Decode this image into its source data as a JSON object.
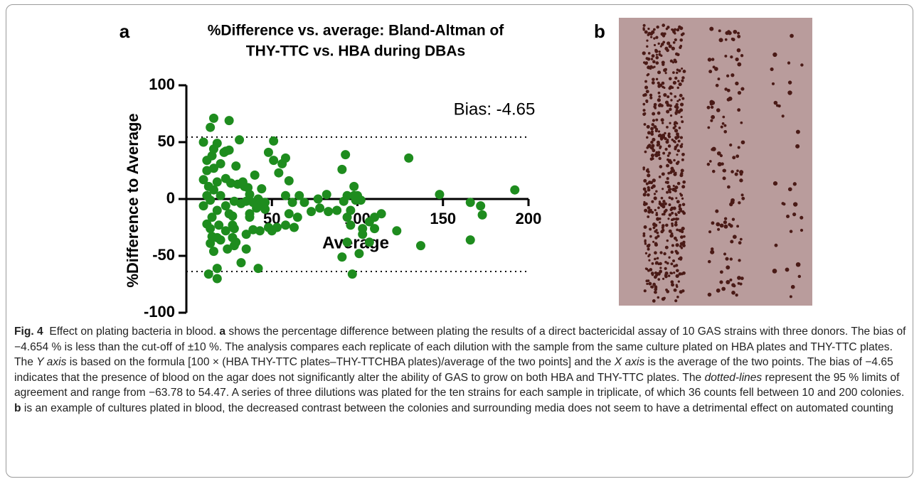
{
  "panel_labels": [
    "a",
    "b"
  ],
  "chart_data": {
    "type": "scatter",
    "title": [
      "%Difference vs. average: Bland-Altman of",
      "THY-TTC vs. HBA during DBAs"
    ],
    "xlabel": "Average",
    "ylabel": "%Difference to Average",
    "annotation": "Bias: -4.65",
    "color": "#1e8c1e",
    "xlim": [
      0,
      200
    ],
    "xticks": [
      50,
      100,
      150,
      200
    ],
    "ylim": [
      -100,
      100
    ],
    "yticks": [
      100,
      50,
      0,
      -50,
      -100
    ],
    "reference_lines": [
      54.47,
      -63.78
    ],
    "x": [
      16,
      14,
      25,
      10,
      12,
      15,
      16,
      18,
      22,
      23,
      25,
      31,
      29,
      20,
      16,
      12,
      10,
      13,
      16,
      18,
      23,
      26,
      30,
      33,
      34,
      36,
      37,
      12,
      14,
      20,
      23,
      28,
      32,
      35,
      39,
      42,
      43,
      46,
      10,
      15,
      18,
      25,
      27,
      37,
      41,
      46,
      12,
      14,
      19,
      23,
      27,
      28,
      27,
      29,
      35,
      37,
      39,
      14,
      15,
      18,
      20,
      24,
      28,
      35,
      32,
      18,
      13,
      18,
      16,
      40,
      44,
      48,
      51,
      51,
      54,
      56,
      58,
      58,
      60,
      62,
      60,
      63,
      65,
      58,
      53,
      50,
      48,
      43,
      42,
      66,
      69,
      73,
      77,
      78,
      83,
      82,
      88,
      92,
      94,
      96,
      102,
      96,
      103,
      91,
      93,
      100,
      98,
      107,
      110,
      110,
      114,
      123,
      130,
      99,
      103,
      94,
      91,
      97,
      101,
      107,
      137,
      148,
      166,
      166,
      172,
      173,
      192,
      94,
      98
    ],
    "values": [
      71,
      63,
      69,
      50,
      34,
      38,
      44,
      49,
      41,
      42,
      43,
      52,
      29,
      31,
      27,
      25,
      17,
      11,
      8,
      15,
      18,
      14,
      13,
      15,
      11,
      10,
      4,
      3,
      -1,
      3,
      -6,
      -2,
      -4,
      -2,
      -3,
      0,
      -4,
      -3,
      -6,
      -16,
      -10,
      -13,
      -15,
      -13,
      -8,
      -9,
      -22,
      -26,
      -23,
      -28,
      -23,
      -26,
      -34,
      -38,
      -31,
      -16,
      -27,
      -39,
      -33,
      -34,
      -36,
      -44,
      -41,
      -44,
      -56,
      -61,
      -66,
      -70,
      -46,
      21,
      9,
      41,
      34,
      51,
      23,
      31,
      36,
      3,
      16,
      -3,
      -13,
      -25,
      -16,
      -23,
      -25,
      -28,
      -25,
      -28,
      -61,
      3,
      -3,
      -11,
      0,
      -8,
      -11,
      4,
      -10,
      -2,
      -16,
      -10,
      -1,
      -23,
      -26,
      26,
      39,
      3,
      11,
      -20,
      -26,
      -16,
      -13,
      -28,
      36,
      -1,
      -31,
      -38,
      -51,
      -66,
      -48,
      -38,
      -41,
      4,
      -36,
      -3,
      -6,
      -14,
      8,
      3,
      3
    ]
  },
  "caption": {
    "label": "Fig. 4",
    "segments": [
      "Effect on plating bacteria in blood. ",
      "a",
      " shows the percentage difference between plating the results of a direct bactericidal assay of 10 GAS strains with three donors. The bias of −4.654 % is less than the cut-off of ±10 %. The analysis compares each replicate of each dilution with the sample from the same culture plated on HBA plates and THY-TTC plates. The ",
      "Y axis",
      " is based on the formula [100 × (HBA THY-TTC plates–THY-TTCHBA plates)/average of the two points] and the ",
      "X axis",
      " is the average of the two points. The bias of −4.65 indicates that the presence of blood on the agar does not significantly alter the ability of GAS to grow on both HBA and THY-TTC plates. The ",
      "dotted-lines",
      " represent the 95 % limits of agreement and range from −63.78 to 54.47. A series of three dilutions was plated for the ten strains for each sample in triplicate, of which 36 counts fell between 10 and 200 colonies. ",
      "b",
      " is an example of cultures plated in blood, the decreased contrast between the colonies and surrounding media does not seem to have a detrimental effect on automated counting"
    ]
  }
}
